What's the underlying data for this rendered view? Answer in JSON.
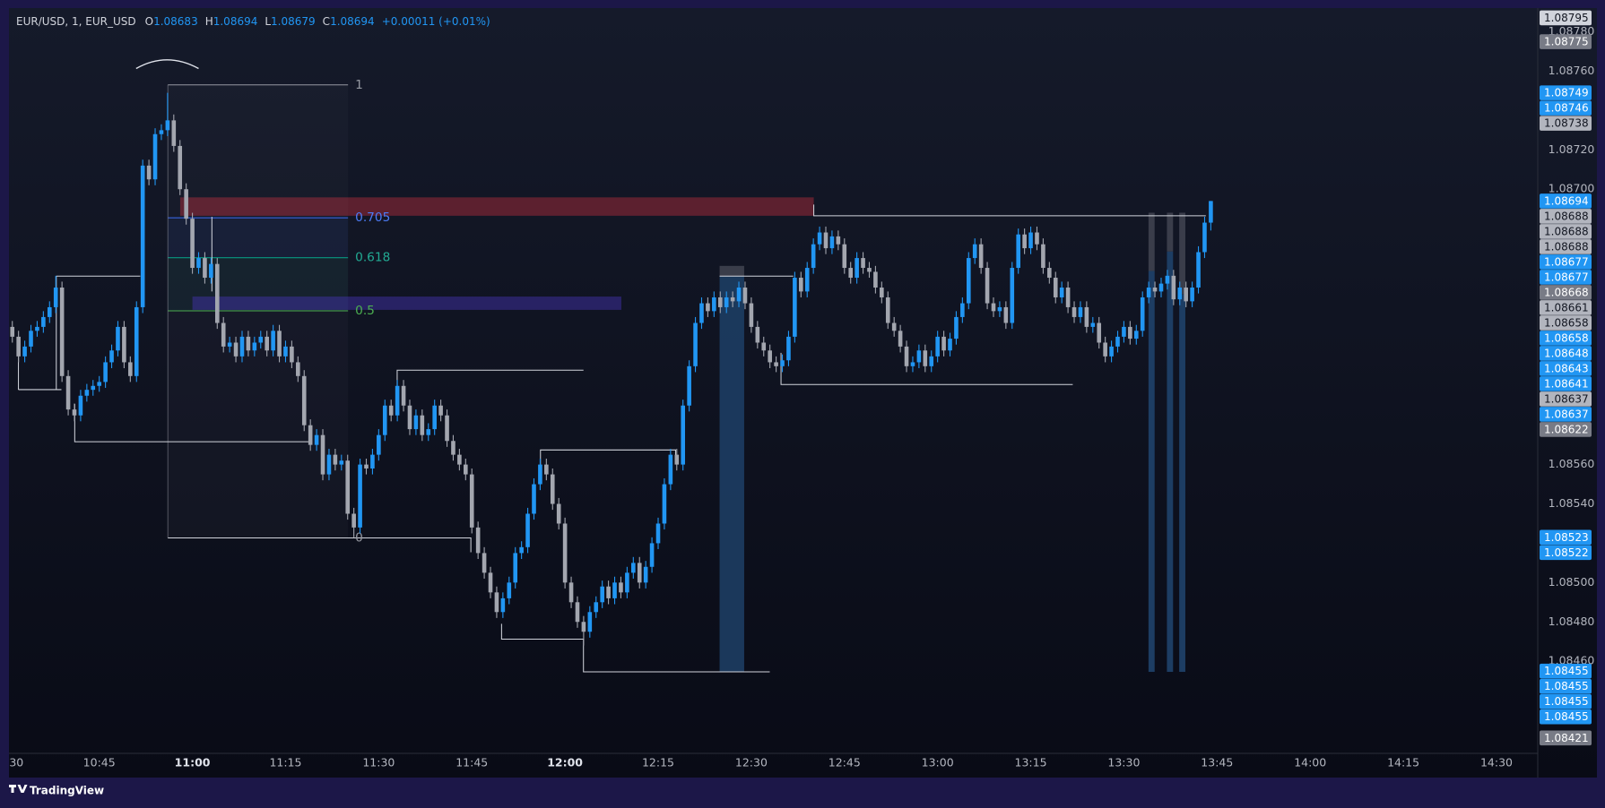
{
  "chart_data": {
    "type": "candlestick",
    "title": "EUR/USD, 1, EUR_USD",
    "ohlc_keys": [
      "O",
      "H",
      "L",
      "C"
    ],
    "change": "+0.00011 (+0.01%)",
    "up_color": "#2196f3",
    "down_color": "#a3a6af",
    "grid": false,
    "xlim": [
      630.5,
      876.6
    ],
    "ylim": [
      1.08413,
      1.08791
    ],
    "yticks": [
      {
        "value": 1.0878,
        "label": "1.08780"
      },
      {
        "value": 1.0876,
        "label": "1.08760"
      },
      {
        "value": 1.0872,
        "label": "1.08720"
      },
      {
        "value": 1.087,
        "label": "1.08700"
      },
      {
        "value": 1.0856,
        "label": "1.08560"
      },
      {
        "value": 1.0854,
        "label": "1.08540"
      },
      {
        "value": 1.085,
        "label": "1.08500"
      },
      {
        "value": 1.0848,
        "label": "1.08480"
      },
      {
        "value": 1.0846,
        "label": "1.08460"
      }
    ],
    "xticks": [
      {
        "value": 630,
        "label": "30"
      },
      {
        "value": 645,
        "label": "10:45"
      },
      {
        "value": 660,
        "label": "11:00",
        "bold": true
      },
      {
        "value": 675,
        "label": "11:15"
      },
      {
        "value": 690,
        "label": "11:30"
      },
      {
        "value": 705,
        "label": "11:45"
      },
      {
        "value": 720,
        "label": "12:00",
        "bold": true
      },
      {
        "value": 735,
        "label": "12:15"
      },
      {
        "value": 750,
        "label": "12:30"
      },
      {
        "value": 765,
        "label": "12:45"
      },
      {
        "value": 780,
        "label": "13:00"
      },
      {
        "value": 795,
        "label": "13:15"
      },
      {
        "value": 810,
        "label": "13:30"
      },
      {
        "value": 825,
        "label": "13:45"
      },
      {
        "value": 840,
        "label": "14:00"
      },
      {
        "value": 855,
        "label": "14:15"
      },
      {
        "value": 870,
        "label": "14:30"
      }
    ],
    "x": [
      631,
      632,
      633,
      634,
      635,
      636,
      637,
      638,
      639,
      640,
      641,
      642,
      643,
      644,
      645,
      646,
      647,
      648,
      649,
      650,
      651,
      652,
      653,
      654,
      655,
      656,
      657,
      658,
      659,
      660,
      661,
      662,
      663,
      664,
      665,
      666,
      667,
      668,
      669,
      670,
      671,
      672,
      673,
      674,
      675,
      676,
      677,
      678,
      679,
      680,
      681,
      682,
      683,
      684,
      685,
      686,
      687,
      688,
      689,
      690,
      691,
      692,
      693,
      694,
      695,
      696,
      697,
      698,
      699,
      700,
      701,
      702,
      703,
      704,
      705,
      706,
      707,
      708,
      709,
      710,
      711,
      712,
      713,
      714,
      715,
      716,
      717,
      718,
      719,
      720,
      721,
      722,
      723,
      724,
      725,
      726,
      727,
      728,
      729,
      730,
      731,
      732,
      733,
      734,
      735,
      736,
      737,
      738,
      739,
      740,
      741,
      742,
      743,
      744,
      745,
      746,
      747,
      748,
      749,
      750,
      751,
      752,
      753,
      754,
      755,
      756,
      757,
      758,
      759,
      760,
      761,
      762,
      763,
      764,
      765,
      766,
      767,
      768,
      769,
      770,
      771,
      772,
      773,
      774,
      775,
      776,
      777,
      778,
      779,
      780,
      781,
      782,
      783,
      784,
      785,
      786,
      787,
      788,
      789,
      790,
      791,
      792,
      793,
      794,
      795,
      796,
      797,
      798,
      799,
      800,
      801,
      802,
      803,
      804,
      805,
      806,
      807,
      808,
      809,
      810,
      811,
      812,
      813,
      814,
      815,
      816,
      817,
      818,
      819,
      820,
      821,
      822,
      823,
      824
    ],
    "open": [
      1.0863,
      1.08625,
      1.08615,
      1.0862,
      1.08628,
      1.0863,
      1.08635,
      1.0864,
      1.0865,
      1.08605,
      1.08588,
      1.08585,
      1.08595,
      1.08598,
      1.086,
      1.08602,
      1.08612,
      1.08618,
      1.0863,
      1.08612,
      1.08605,
      1.0864,
      1.08712,
      1.08705,
      1.08728,
      1.0873,
      1.08735,
      1.08722,
      1.087,
      1.08685,
      1.0866,
      1.08665,
      1.08655,
      1.08662,
      1.08632,
      1.0862,
      1.08622,
      1.08615,
      1.08625,
      1.08618,
      1.08622,
      1.08625,
      1.08618,
      1.08628,
      1.08615,
      1.0862,
      1.08612,
      1.08605,
      1.0858,
      1.0857,
      1.08575,
      1.08555,
      1.08565,
      1.0856,
      1.08562,
      1.08535,
      1.08528,
      1.0856,
      1.08558,
      1.08565,
      1.08575,
      1.0859,
      1.08585,
      1.086,
      1.0859,
      1.08578,
      1.08585,
      1.08575,
      1.08578,
      1.0859,
      1.08585,
      1.08572,
      1.08565,
      1.0856,
      1.08555,
      1.08528,
      1.08515,
      1.08505,
      1.08495,
      1.08485,
      1.08492,
      1.085,
      1.08515,
      1.08518,
      1.08535,
      1.0855,
      1.0856,
      1.08555,
      1.0854,
      1.0853,
      1.085,
      1.0849,
      1.0848,
      1.08475,
      1.08485,
      1.0849,
      1.08498,
      1.08492,
      1.085,
      1.08495,
      1.08505,
      1.0851,
      1.085,
      1.08508,
      1.0852,
      1.0853,
      1.0855,
      1.08565,
      1.0856,
      1.0859,
      1.0861,
      1.08632,
      1.08642,
      1.08638,
      1.08645,
      1.0864,
      1.08645,
      1.08643,
      1.0865,
      1.08642,
      1.0863,
      1.08622,
      1.08618,
      1.08612,
      1.0861,
      1.08613,
      1.08625,
      1.08655,
      1.08648,
      1.0866,
      1.08672,
      1.08678,
      1.0867,
      1.08676,
      1.08672,
      1.0866,
      1.08655,
      1.08665,
      1.0866,
      1.08658,
      1.0865,
      1.08645,
      1.08632,
      1.08628,
      1.0862,
      1.0861,
      1.08612,
      1.08618,
      1.0861,
      1.08615,
      1.08625,
      1.08618,
      1.08624,
      1.08635,
      1.08642,
      1.08665,
      1.08672,
      1.0866,
      1.08642,
      1.08638,
      1.0864,
      1.08632,
      1.0866,
      1.08677,
      1.0867,
      1.08678,
      1.08672,
      1.0866,
      1.08655,
      1.08645,
      1.0865,
      1.0864,
      1.08635,
      1.0864,
      1.0863,
      1.08632,
      1.08622,
      1.08615,
      1.0862,
      1.08625,
      1.0863,
      1.08624,
      1.08628,
      1.08645,
      1.0865,
      1.08648,
      1.08652,
      1.08656,
      1.08644,
      1.0865,
      1.08643,
      1.0865,
      1.08668,
      1.08683
    ],
    "high": [
      1.08633,
      1.08628,
      1.08623,
      1.08631,
      1.08633,
      1.08638,
      1.08643,
      1.08656,
      1.08653,
      1.08608,
      1.08591,
      1.08598,
      1.08601,
      1.08603,
      1.08605,
      1.08615,
      1.08621,
      1.08633,
      1.08633,
      1.08615,
      1.08643,
      1.08715,
      1.08715,
      1.08731,
      1.08733,
      1.08749,
      1.08738,
      1.08725,
      1.08703,
      1.08688,
      1.08668,
      1.08668,
      1.08665,
      1.08665,
      1.08635,
      1.08625,
      1.08625,
      1.08628,
      1.08628,
      1.08625,
      1.08628,
      1.08628,
      1.08631,
      1.08631,
      1.08623,
      1.08623,
      1.08615,
      1.08608,
      1.08583,
      1.08578,
      1.08578,
      1.08568,
      1.08568,
      1.08565,
      1.08565,
      1.08538,
      1.08563,
      1.08563,
      1.08568,
      1.08578,
      1.08593,
      1.08593,
      1.08603,
      1.08603,
      1.08593,
      1.08588,
      1.08588,
      1.08581,
      1.08593,
      1.08593,
      1.08588,
      1.08575,
      1.08568,
      1.08563,
      1.08558,
      1.08531,
      1.08518,
      1.08508,
      1.08498,
      1.08495,
      1.08503,
      1.08518,
      1.08521,
      1.08538,
      1.08553,
      1.08563,
      1.08563,
      1.08558,
      1.08543,
      1.08533,
      1.08503,
      1.08493,
      1.08483,
      1.08488,
      1.08493,
      1.08501,
      1.08501,
      1.08503,
      1.08503,
      1.08508,
      1.08513,
      1.08513,
      1.08511,
      1.08523,
      1.08533,
      1.08553,
      1.08568,
      1.08568,
      1.08593,
      1.08613,
      1.08635,
      1.08645,
      1.08645,
      1.08648,
      1.08648,
      1.08648,
      1.08648,
      1.08653,
      1.08653,
      1.08645,
      1.08633,
      1.08625,
      1.08621,
      1.08615,
      1.08616,
      1.08628,
      1.08658,
      1.08658,
      1.08663,
      1.08675,
      1.08681,
      1.08681,
      1.08679,
      1.08679,
      1.08675,
      1.08663,
      1.08668,
      1.08668,
      1.08663,
      1.08661,
      1.08653,
      1.08648,
      1.08635,
      1.08631,
      1.08623,
      1.08615,
      1.08621,
      1.08621,
      1.08618,
      1.08628,
      1.08628,
      1.08627,
      1.08638,
      1.08645,
      1.08668,
      1.08675,
      1.08675,
      1.08663,
      1.08645,
      1.08643,
      1.08643,
      1.08663,
      1.0868,
      1.0868,
      1.08681,
      1.08681,
      1.08675,
      1.08663,
      1.08658,
      1.08653,
      1.08653,
      1.08643,
      1.08643,
      1.08643,
      1.08635,
      1.08635,
      1.08625,
      1.08623,
      1.08628,
      1.08633,
      1.08633,
      1.08631,
      1.08648,
      1.08653,
      1.08653,
      1.08655,
      1.08659,
      1.08659,
      1.08653,
      1.08653,
      1.08653,
      1.08671,
      1.08686,
      1.08694
    ],
    "low": [
      1.08622,
      1.08612,
      1.08612,
      1.08617,
      1.08625,
      1.08627,
      1.08632,
      1.08637,
      1.08602,
      1.08585,
      1.08582,
      1.08582,
      1.08592,
      1.08595,
      1.08597,
      1.08599,
      1.08609,
      1.08615,
      1.08609,
      1.08602,
      1.08602,
      1.08637,
      1.08702,
      1.08702,
      1.08725,
      1.08727,
      1.08719,
      1.08697,
      1.08682,
      1.08657,
      1.08657,
      1.08652,
      1.08652,
      1.08629,
      1.08617,
      1.08617,
      1.08612,
      1.08612,
      1.08615,
      1.08615,
      1.08619,
      1.08615,
      1.08615,
      1.08612,
      1.08612,
      1.08609,
      1.08602,
      1.08577,
      1.08567,
      1.08567,
      1.08552,
      1.08552,
      1.08557,
      1.08557,
      1.08532,
      1.08523,
      1.08525,
      1.08555,
      1.08555,
      1.08562,
      1.08572,
      1.08582,
      1.08582,
      1.08587,
      1.08575,
      1.08575,
      1.08572,
      1.08572,
      1.08575,
      1.08582,
      1.08569,
      1.08562,
      1.08557,
      1.08552,
      1.08525,
      1.08512,
      1.08502,
      1.08492,
      1.08482,
      1.08482,
      1.08489,
      1.08497,
      1.08512,
      1.08515,
      1.08532,
      1.08547,
      1.08552,
      1.08537,
      1.08527,
      1.08497,
      1.08487,
      1.08477,
      1.08468,
      1.08472,
      1.08482,
      1.08487,
      1.08489,
      1.08489,
      1.08492,
      1.08492,
      1.08502,
      1.08497,
      1.08497,
      1.08505,
      1.08517,
      1.08527,
      1.08547,
      1.08557,
      1.08557,
      1.08587,
      1.08607,
      1.08629,
      1.08635,
      1.08635,
      1.08637,
      1.08637,
      1.0864,
      1.0864,
      1.08639,
      1.08627,
      1.08619,
      1.08615,
      1.08609,
      1.08607,
      1.08607,
      1.0861,
      1.08622,
      1.08645,
      1.08645,
      1.08657,
      1.08669,
      1.08667,
      1.08667,
      1.08669,
      1.08657,
      1.08652,
      1.08652,
      1.08657,
      1.08655,
      1.08647,
      1.08642,
      1.08629,
      1.08625,
      1.08617,
      1.08607,
      1.08607,
      1.08609,
      1.08607,
      1.08607,
      1.08612,
      1.08615,
      1.08615,
      1.08621,
      1.08632,
      1.08639,
      1.08662,
      1.08657,
      1.08639,
      1.08635,
      1.08635,
      1.08629,
      1.08629,
      1.08657,
      1.08667,
      1.08667,
      1.08669,
      1.08657,
      1.08652,
      1.08642,
      1.08642,
      1.08637,
      1.08632,
      1.08632,
      1.08627,
      1.08627,
      1.08619,
      1.08612,
      1.08612,
      1.08617,
      1.08622,
      1.08621,
      1.08621,
      1.08625,
      1.08642,
      1.08645,
      1.08645,
      1.08649,
      1.08641,
      1.08641,
      1.0864,
      1.0864,
      1.08647,
      1.08665,
      1.08679
    ],
    "close": [
      1.08625,
      1.08615,
      1.0862,
      1.08628,
      1.0863,
      1.08635,
      1.0864,
      1.0865,
      1.08605,
      1.08588,
      1.08585,
      1.08595,
      1.08598,
      1.086,
      1.08602,
      1.08612,
      1.08618,
      1.0863,
      1.08612,
      1.08605,
      1.0864,
      1.08712,
      1.08705,
      1.08728,
      1.0873,
      1.08735,
      1.08722,
      1.087,
      1.08685,
      1.0866,
      1.08665,
      1.08655,
      1.08662,
      1.08632,
      1.0862,
      1.08622,
      1.08615,
      1.08625,
      1.08618,
      1.08622,
      1.08625,
      1.08618,
      1.08628,
      1.08615,
      1.0862,
      1.08612,
      1.08605,
      1.0858,
      1.0857,
      1.08575,
      1.08555,
      1.08565,
      1.0856,
      1.08562,
      1.08535,
      1.08528,
      1.0856,
      1.08558,
      1.08565,
      1.08575,
      1.0859,
      1.08585,
      1.086,
      1.0859,
      1.08578,
      1.08585,
      1.08575,
      1.08578,
      1.0859,
      1.08585,
      1.08572,
      1.08565,
      1.0856,
      1.08555,
      1.08528,
      1.08515,
      1.08505,
      1.08495,
      1.08485,
      1.08492,
      1.085,
      1.08515,
      1.08518,
      1.08535,
      1.0855,
      1.0856,
      1.08555,
      1.0854,
      1.0853,
      1.085,
      1.0849,
      1.0848,
      1.08475,
      1.08485,
      1.0849,
      1.08498,
      1.08492,
      1.085,
      1.08495,
      1.08505,
      1.0851,
      1.085,
      1.08508,
      1.0852,
      1.0853,
      1.0855,
      1.08565,
      1.0856,
      1.0859,
      1.0861,
      1.08632,
      1.08642,
      1.08638,
      1.08645,
      1.0864,
      1.08645,
      1.08643,
      1.0865,
      1.08642,
      1.0863,
      1.08622,
      1.08618,
      1.08612,
      1.0861,
      1.08613,
      1.08625,
      1.08655,
      1.08648,
      1.0866,
      1.08672,
      1.08678,
      1.0867,
      1.08676,
      1.08672,
      1.0866,
      1.08655,
      1.08665,
      1.0866,
      1.08658,
      1.0865,
      1.08645,
      1.08632,
      1.08628,
      1.0862,
      1.0861,
      1.08612,
      1.08618,
      1.0861,
      1.08615,
      1.08625,
      1.08618,
      1.08624,
      1.08635,
      1.08642,
      1.08665,
      1.08672,
      1.0866,
      1.08642,
      1.08638,
      1.0864,
      1.08632,
      1.0866,
      1.08677,
      1.0867,
      1.08678,
      1.08672,
      1.0866,
      1.08655,
      1.08645,
      1.0865,
      1.0864,
      1.08635,
      1.0864,
      1.0863,
      1.08632,
      1.08622,
      1.08615,
      1.0862,
      1.08625,
      1.0863,
      1.08624,
      1.08628,
      1.08645,
      1.0865,
      1.08648,
      1.08652,
      1.08656,
      1.08644,
      1.0865,
      1.08643,
      1.0865,
      1.08668,
      1.08683,
      1.08694
    ],
    "price_labels": [
      {
        "value": 1.08795,
        "bg": "#d1d4dc",
        "fg": "#131722"
      },
      {
        "value": 1.08775,
        "bg": "#787b86",
        "fg": "#ffffff"
      },
      {
        "value": 1.08749,
        "bg": "#2196f3",
        "fg": "#ffffff"
      },
      {
        "value": 1.08746,
        "bg": "#2196f3",
        "fg": "#ffffff"
      },
      {
        "value": 1.08738,
        "bg": "#b2b5be",
        "fg": "#131722"
      },
      {
        "value": 1.08694,
        "bg": "#2196f3",
        "fg": "#ffffff"
      },
      {
        "value": 1.08688,
        "bg": "#b2b5be",
        "fg": "#131722"
      },
      {
        "value": 1.08688,
        "bg": "#b2b5be",
        "fg": "#131722"
      },
      {
        "value": 1.08688,
        "bg": "#b2b5be",
        "fg": "#131722"
      },
      {
        "value": 1.08677,
        "bg": "#2196f3",
        "fg": "#ffffff"
      },
      {
        "value": 1.08677,
        "bg": "#2196f3",
        "fg": "#ffffff"
      },
      {
        "value": 1.08668,
        "bg": "#787b86",
        "fg": "#ffffff"
      },
      {
        "value": 1.08661,
        "bg": "#b2b5be",
        "fg": "#131722"
      },
      {
        "value": 1.08658,
        "bg": "#b2b5be",
        "fg": "#131722"
      },
      {
        "value": 1.08658,
        "bg": "#2196f3",
        "fg": "#ffffff"
      },
      {
        "value": 1.08648,
        "bg": "#2196f3",
        "fg": "#ffffff"
      },
      {
        "value": 1.08643,
        "bg": "#2196f3",
        "fg": "#ffffff"
      },
      {
        "value": 1.08641,
        "bg": "#2196f3",
        "fg": "#ffffff"
      },
      {
        "value": 1.08637,
        "bg": "#b2b5be",
        "fg": "#131722"
      },
      {
        "value": 1.08637,
        "bg": "#2196f3",
        "fg": "#ffffff"
      },
      {
        "value": 1.08622,
        "bg": "#787b86",
        "fg": "#ffffff"
      },
      {
        "value": 1.08523,
        "bg": "#2196f3",
        "fg": "#ffffff"
      },
      {
        "value": 1.08522,
        "bg": "#2196f3",
        "fg": "#ffffff"
      },
      {
        "value": 1.08455,
        "bg": "#2196f3",
        "fg": "#ffffff"
      },
      {
        "value": 1.08455,
        "bg": "#2196f3",
        "fg": "#ffffff"
      },
      {
        "value": 1.08455,
        "bg": "#2196f3",
        "fg": "#ffffff"
      },
      {
        "value": 1.08455,
        "bg": "#2196f3",
        "fg": "#ffffff"
      },
      {
        "value": 1.08421,
        "bg": "#787b86",
        "fg": "#ffffff"
      }
    ],
    "fib_levels": [
      "1",
      "0.705",
      "0.618",
      "0.5",
      "0"
    ]
  },
  "brand": "TradingView"
}
